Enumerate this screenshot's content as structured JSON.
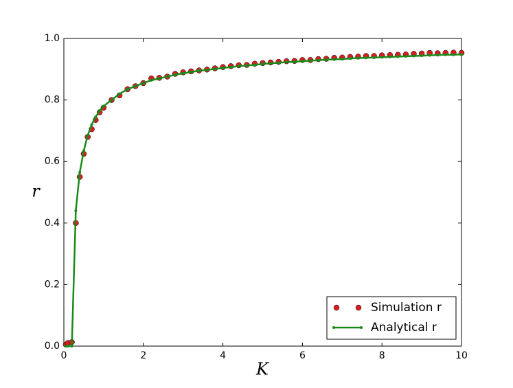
{
  "chart_data": {
    "type": "line",
    "xlabel": "K",
    "ylabel": "r",
    "x": [
      0.05,
      0.1,
      0.2,
      0.3,
      0.4,
      0.5,
      0.6,
      0.7,
      0.8,
      0.9,
      1.0,
      1.2,
      1.4,
      1.6,
      1.8,
      2.0,
      2.2,
      2.4,
      2.6,
      2.8,
      3.0,
      3.2,
      3.4,
      3.6,
      3.8,
      4.0,
      4.2,
      4.4,
      4.6,
      4.8,
      5.0,
      5.2,
      5.4,
      5.6,
      5.8,
      6.0,
      6.2,
      6.4,
      6.6,
      6.8,
      7.0,
      7.2,
      7.4,
      7.6,
      7.8,
      8.0,
      8.2,
      8.4,
      8.6,
      8.8,
      9.0,
      9.2,
      9.4,
      9.6,
      9.8,
      10.0
    ],
    "series": [
      {
        "name": "Simulation r",
        "color": "#d62020",
        "mode": "markers",
        "values": [
          0.005,
          0.01,
          0.013,
          0.4,
          0.55,
          0.625,
          0.68,
          0.705,
          0.735,
          0.76,
          0.775,
          0.8,
          0.815,
          0.835,
          0.845,
          0.855,
          0.87,
          0.872,
          0.876,
          0.885,
          0.89,
          0.893,
          0.896,
          0.899,
          0.903,
          0.907,
          0.91,
          0.913,
          0.914,
          0.918,
          0.92,
          0.922,
          0.924,
          0.926,
          0.927,
          0.93,
          0.93,
          0.933,
          0.934,
          0.937,
          0.938,
          0.94,
          0.941,
          0.943,
          0.943,
          0.945,
          0.946,
          0.947,
          0.948,
          0.95,
          0.951,
          0.953,
          0.952,
          0.953,
          0.954,
          0.953
        ]
      },
      {
        "name": "Analytical r",
        "color": "#1a8a1a",
        "mode": "line",
        "values": [
          0,
          0,
          0,
          0.44,
          0.565,
          0.635,
          0.685,
          0.72,
          0.745,
          0.765,
          0.78,
          0.8,
          0.82,
          0.835,
          0.845,
          0.855,
          0.864,
          0.87,
          0.876,
          0.882,
          0.887,
          0.891,
          0.895,
          0.898,
          0.901,
          0.904,
          0.907,
          0.91,
          0.912,
          0.914,
          0.917,
          0.919,
          0.921,
          0.923,
          0.924,
          0.926,
          0.928,
          0.929,
          0.931,
          0.932,
          0.933,
          0.935,
          0.936,
          0.937,
          0.938,
          0.939,
          0.94,
          0.941,
          0.942,
          0.943,
          0.944,
          0.945,
          0.946,
          0.947,
          0.947,
          0.948
        ]
      }
    ],
    "xlim": [
      0,
      10
    ],
    "xticks": [
      0,
      2,
      4,
      6,
      8,
      10
    ],
    "ylim": [
      0,
      1
    ],
    "yticks": [
      {
        "value": 0,
        "label": "0.0"
      },
      {
        "value": 0.2,
        "label": "0.2"
      },
      {
        "value": 0.4,
        "label": "0.4"
      },
      {
        "value": 0.6,
        "label": "0.6"
      },
      {
        "value": 0.8,
        "label": "0.8"
      },
      {
        "value": 1,
        "label": "1.0"
      }
    ],
    "grid": false,
    "legend": "lower right"
  }
}
